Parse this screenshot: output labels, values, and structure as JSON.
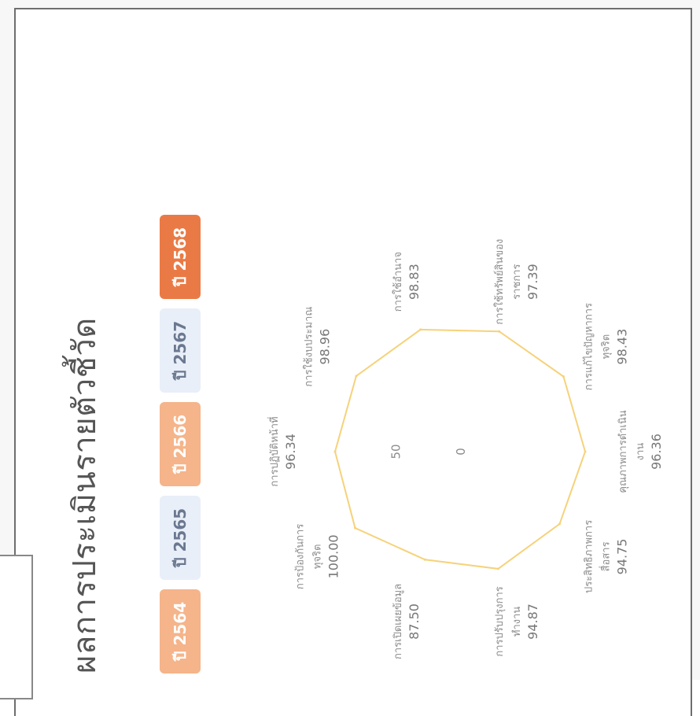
{
  "page": {
    "title": "ผลการประเมินรายตัวชี้วัด",
    "years": [
      {
        "label": "ปี 2564",
        "bg": "#f5b48a",
        "fg": "#ffffff"
      },
      {
        "label": "ปี 2565",
        "bg": "#e9eff8",
        "fg": "#6a7890"
      },
      {
        "label": "ปี 2566",
        "bg": "#f5b48a",
        "fg": "#ffffff"
      },
      {
        "label": "ปี 2567",
        "bg": "#e9eff8",
        "fg": "#6a7890"
      },
      {
        "label": "ปี 2568",
        "bg": "#ea7a45",
        "fg": "#ffffff"
      }
    ]
  },
  "chart_data": {
    "type": "radar",
    "scale": {
      "min": 0,
      "max": 100,
      "tick_labels": [
        "0",
        "50"
      ]
    },
    "series_color": "#f6d27a",
    "axes": [
      {
        "label_lines": [
          "การปฏิบัติหน้าที่"
        ],
        "value": 96.34,
        "value_text": "96.34"
      },
      {
        "label_lines": [
          "การใช้งบประมาณ"
        ],
        "value": 98.96,
        "value_text": "98.96"
      },
      {
        "label_lines": [
          "การใช้อำนาจ"
        ],
        "value": 98.83,
        "value_text": "98.83"
      },
      {
        "label_lines": [
          "การใช้ทรัพย์สินของ",
          "ราชการ"
        ],
        "value": 97.39,
        "value_text": "97.39"
      },
      {
        "label_lines": [
          "การแก้ไขปัญหาการ",
          "ทุจริต"
        ],
        "value": 98.43,
        "value_text": "98.43"
      },
      {
        "label_lines": [
          "คุณภาพการดำเนิน",
          "งาน"
        ],
        "value": 96.36,
        "value_text": "96.36"
      },
      {
        "label_lines": [
          "ประสิทธิภาพการ",
          "สื่อสาร"
        ],
        "value": 94.75,
        "value_text": "94.75"
      },
      {
        "label_lines": [
          "การปรับปรุงการ",
          "ทำงาน"
        ],
        "value": 94.87,
        "value_text": "94.87"
      },
      {
        "label_lines": [
          "การเปิดเผยข้อมูล"
        ],
        "value": 87.5,
        "value_text": "87.50"
      },
      {
        "label_lines": [
          "การป้องกันการ",
          "ทุจริต"
        ],
        "value": 100,
        "value_text": "100.00"
      }
    ]
  }
}
